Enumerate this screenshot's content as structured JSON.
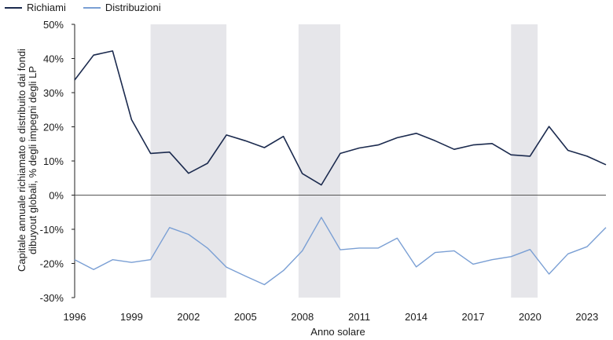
{
  "chart_data": {
    "type": "line",
    "title": "",
    "xlabel": "Anno solare",
    "ylabel_line1": "Capitale annuale richiamato e distribuito dai fondi",
    "ylabel_line2": "dibuyout globali, % degli impegni degli LP",
    "x": [
      1996,
      1997,
      1998,
      1999,
      2000,
      2001,
      2002,
      2003,
      2004,
      2005,
      2006,
      2007,
      2008,
      2009,
      2010,
      2011,
      2012,
      2013,
      2014,
      2015,
      2016,
      2017,
      2018,
      2019,
      2020,
      2021,
      2022,
      2023,
      2024
    ],
    "x_tick_values": [
      1996,
      1999,
      2002,
      2005,
      2008,
      2011,
      2014,
      2017,
      2020,
      2023
    ],
    "x_tick_labels": [
      "1996",
      "1999",
      "2002",
      "2005",
      "2008",
      "2011",
      "2014",
      "2017",
      "2020",
      "2023"
    ],
    "xlim": [
      1996,
      2024
    ],
    "ylim": [
      -30,
      50
    ],
    "y_tick_values": [
      50,
      40,
      30,
      20,
      10,
      0,
      -10,
      -20,
      -30
    ],
    "y_tick_labels": [
      "50%",
      "40%",
      "30%",
      "20%",
      "10%",
      "0%",
      "-10%",
      "-20%",
      "-30%"
    ],
    "recession_bands": [
      [
        2000,
        2004
      ],
      [
        2007.8,
        2010
      ],
      [
        2019,
        2020.4
      ]
    ],
    "series": [
      {
        "name": "Richiami",
        "color": "#1b2a4e",
        "values": [
          33.7,
          41.0,
          42.2,
          22.1,
          12.2,
          12.6,
          6.4,
          9.3,
          17.6,
          15.9,
          13.9,
          17.2,
          6.3,
          3.0,
          12.2,
          13.8,
          14.7,
          16.8,
          18.1,
          15.9,
          13.4,
          14.7,
          15.1,
          11.8,
          11.4,
          20.1,
          13.1,
          11.4,
          8.9
        ]
      },
      {
        "name": "Distribuzioni",
        "color": "#7a9fd4",
        "values": [
          -18.9,
          -21.8,
          -18.9,
          -19.7,
          -18.9,
          -9.5,
          -11.5,
          -15.5,
          -21.1,
          -23.7,
          -26.2,
          -22.1,
          -16.3,
          -6.5,
          -16.0,
          -15.5,
          -15.5,
          -12.6,
          -21.0,
          -16.8,
          -16.3,
          -20.2,
          -18.9,
          -18.0,
          -15.9,
          -23.1,
          -17.2,
          -15.1,
          -9.5
        ]
      }
    ],
    "legend_position": "top-left"
  }
}
